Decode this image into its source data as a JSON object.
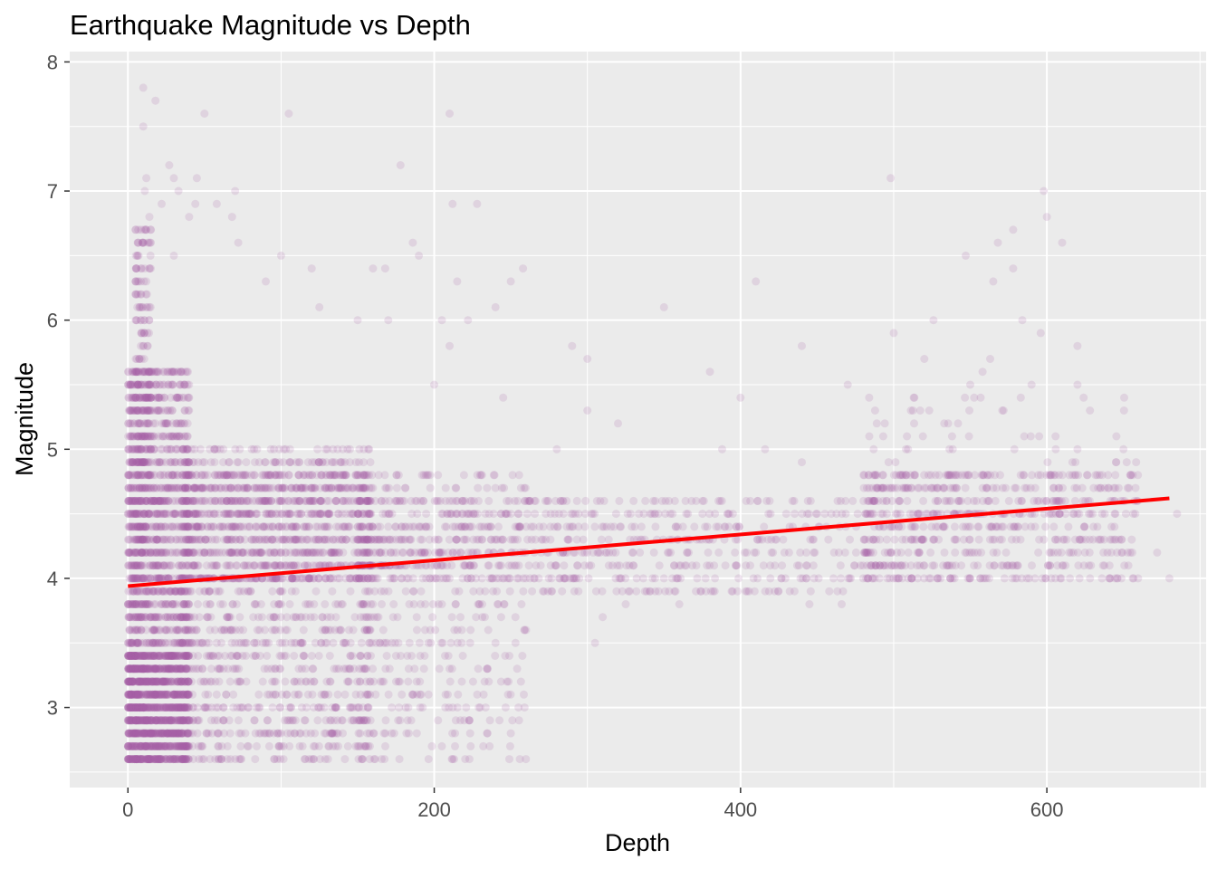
{
  "chart_data": {
    "type": "scatter",
    "title": "Earthquake Magnitude vs Depth",
    "xlabel": "Depth",
    "ylabel": "Magnitude",
    "xlim": [
      -38,
      704
    ],
    "ylim": [
      2.38,
      8.08
    ],
    "x_ticks": [
      0,
      200,
      400,
      600
    ],
    "y_ticks": [
      3,
      4,
      5,
      6,
      7,
      8
    ],
    "grid": true,
    "legend": "none",
    "point_color": "#a561a5",
    "point_opacity": 0.17,
    "trend_color": "#ff0000",
    "panel_color": "#ebebeb",
    "trend_line": {
      "x": [
        0,
        680
      ],
      "y": [
        3.94,
        4.62
      ]
    },
    "clusters": [
      {
        "x": [
          0,
          40
        ],
        "y": [
          2.6,
          5.6
        ],
        "n": 1600,
        "mag_step": 0.1
      },
      {
        "x": [
          0,
          40
        ],
        "y": [
          2.6,
          3.4
        ],
        "n": 900,
        "mag_step": 0.1
      },
      {
        "x": [
          5,
          15
        ],
        "y": [
          4.0,
          6.7
        ],
        "n": 250,
        "mag_step": 0.1
      },
      {
        "x": [
          35,
          160
        ],
        "y": [
          2.6,
          5.0
        ],
        "n": 1100,
        "mag_step": 0.1
      },
      {
        "x": [
          35,
          160
        ],
        "y": [
          4.0,
          4.8
        ],
        "n": 700,
        "mag_step": 0.1
      },
      {
        "x": [
          150,
          260
        ],
        "y": [
          2.6,
          4.8
        ],
        "n": 420,
        "mag_step": 0.1
      },
      {
        "x": [
          150,
          260
        ],
        "y": [
          4.0,
          4.6
        ],
        "n": 300,
        "mag_step": 0.1
      },
      {
        "x": [
          260,
          480
        ],
        "y": [
          3.9,
          4.6
        ],
        "n": 420,
        "mag_step": 0.1
      },
      {
        "x": [
          480,
          660
        ],
        "y": [
          4.0,
          4.8
        ],
        "n": 650,
        "mag_step": 0.1
      },
      {
        "x": [
          480,
          660
        ],
        "y": [
          4.8,
          5.4
        ],
        "n": 60,
        "mag_step": 0.1
      }
    ],
    "points": [
      [
        10,
        7.8
      ],
      [
        18,
        7.7
      ],
      [
        10,
        7.5
      ],
      [
        50,
        7.6
      ],
      [
        105,
        7.6
      ],
      [
        210,
        7.6
      ],
      [
        27,
        7.2
      ],
      [
        12,
        7.1
      ],
      [
        30,
        7.1
      ],
      [
        45,
        7.1
      ],
      [
        70,
        7.0
      ],
      [
        178,
        7.2
      ],
      [
        11,
        7.0
      ],
      [
        33,
        7.0
      ],
      [
        22,
        6.9
      ],
      [
        44,
        6.9
      ],
      [
        58,
        6.9
      ],
      [
        212,
        6.9
      ],
      [
        228,
        6.9
      ],
      [
        498,
        7.1
      ],
      [
        598,
        7.0
      ],
      [
        14,
        6.8
      ],
      [
        68,
        6.8
      ],
      [
        40,
        6.8
      ],
      [
        186,
        6.6
      ],
      [
        190,
        6.5
      ],
      [
        168,
        6.4
      ],
      [
        100,
        6.5
      ],
      [
        72,
        6.6
      ],
      [
        30,
        6.5
      ],
      [
        258,
        6.4
      ],
      [
        215,
        6.3
      ],
      [
        410,
        6.3
      ],
      [
        610,
        6.6
      ],
      [
        578,
        6.7
      ],
      [
        547,
        6.5
      ],
      [
        600,
        6.8
      ],
      [
        568,
        6.6
      ],
      [
        578,
        6.4
      ],
      [
        250,
        6.3
      ],
      [
        160,
        6.4
      ],
      [
        120,
        6.4
      ],
      [
        90,
        6.3
      ],
      [
        565,
        6.3
      ],
      [
        350,
        6.1
      ],
      [
        240,
        6.1
      ],
      [
        125,
        6.1
      ],
      [
        170,
        6.0
      ],
      [
        205,
        6.0
      ],
      [
        222,
        6.0
      ],
      [
        526,
        6.0
      ],
      [
        584,
        6.0
      ],
      [
        150,
        6.0
      ],
      [
        210,
        5.8
      ],
      [
        290,
        5.8
      ],
      [
        300,
        5.7
      ],
      [
        500,
        5.9
      ],
      [
        596,
        5.9
      ],
      [
        620,
        5.8
      ],
      [
        440,
        5.8
      ],
      [
        380,
        5.6
      ],
      [
        558,
        5.6
      ],
      [
        563,
        5.7
      ],
      [
        520,
        5.7
      ],
      [
        620,
        5.5
      ],
      [
        550,
        5.5
      ],
      [
        590,
        5.5
      ],
      [
        470,
        5.5
      ],
      [
        400,
        5.4
      ],
      [
        624,
        5.4
      ],
      [
        542,
        5.2
      ],
      [
        320,
        5.2
      ],
      [
        245,
        5.4
      ],
      [
        200,
        5.5
      ],
      [
        300,
        5.3
      ],
      [
        620,
        5.0
      ],
      [
        416,
        5.0
      ],
      [
        440,
        4.9
      ],
      [
        650,
        5.0
      ],
      [
        280,
        5.0
      ],
      [
        388,
        5.0
      ],
      [
        680,
        4.0
      ],
      [
        672,
        4.2
      ],
      [
        685,
        4.5
      ],
      [
        305,
        3.5
      ],
      [
        310,
        3.7
      ],
      [
        240,
        3.5
      ],
      [
        260,
        3.6
      ],
      [
        210,
        3.3
      ],
      [
        218,
        3.2
      ],
      [
        230,
        3.0
      ],
      [
        255,
        3.0
      ],
      [
        205,
        2.7
      ],
      [
        212,
        2.6
      ],
      [
        360,
        3.8
      ],
      [
        445,
        3.8
      ],
      [
        466,
        3.8
      ],
      [
        398,
        3.9
      ],
      [
        325,
        3.8
      ],
      [
        374,
        3.9
      ]
    ]
  }
}
